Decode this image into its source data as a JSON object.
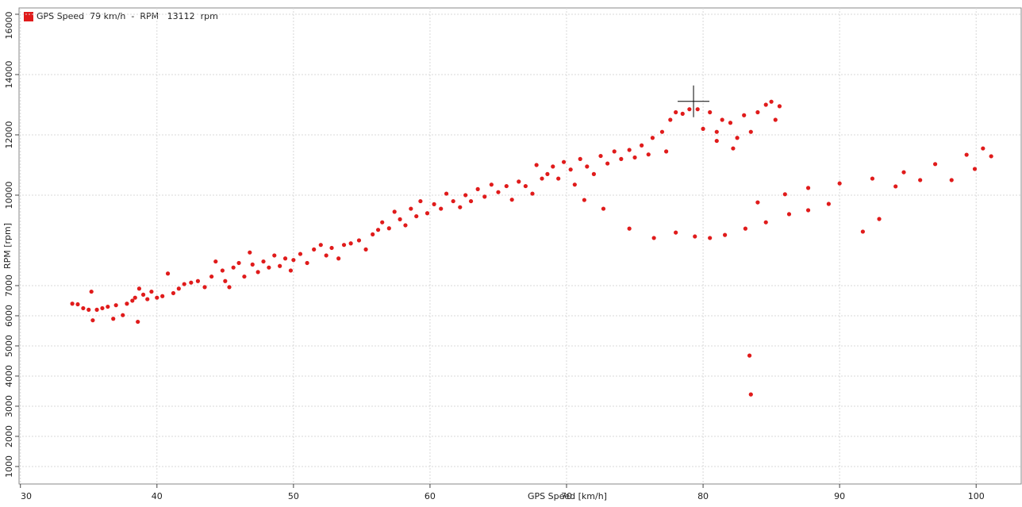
{
  "chart_data": {
    "type": "scatter",
    "legend_text": "GPS Speed  79 km/h  -  RPM   13112  rpm",
    "x_label": "GPS Speed [km/h]",
    "y_label": "RPM [rpm]",
    "xlim": [
      29.9,
      103.3
    ],
    "xticks": [
      30,
      40,
      50,
      60,
      70,
      80,
      90,
      100
    ],
    "ylim": [
      420,
      16210
    ],
    "yticks": [
      1000,
      2000,
      3000,
      4000,
      5000,
      6000,
      7000,
      10000,
      12000,
      14000,
      16000
    ],
    "grid": true,
    "cursor": {
      "x": 79.3,
      "y": 13112
    },
    "series": [
      {
        "name": "GPS Speed",
        "color": "#e01b1b",
        "x": [
          33.8,
          34.2,
          34.6,
          35.0,
          35.2,
          35.3,
          35.6,
          36.0,
          36.4,
          36.8,
          37.0,
          37.5,
          37.8,
          38.2,
          38.4,
          38.6,
          38.7,
          39.0,
          39.3,
          39.6,
          40.0,
          40.4,
          40.8,
          41.2,
          41.6,
          42.0,
          42.5,
          43.0,
          43.5,
          44.0,
          44.3,
          44.8,
          45.0,
          45.3,
          45.6,
          46.0,
          46.4,
          46.8,
          47.0,
          47.4,
          47.8,
          48.2,
          48.6,
          49.0,
          49.4,
          49.8,
          50.0,
          50.5,
          51.0,
          51.5,
          52.0,
          52.4,
          52.8,
          53.3,
          53.7,
          54.2,
          54.8,
          55.3,
          55.8,
          56.2,
          56.5,
          57.0,
          57.4,
          57.8,
          58.2,
          58.6,
          59.0,
          59.3,
          59.8,
          60.3,
          60.8,
          61.2,
          61.7,
          62.2,
          62.6,
          63.0,
          63.5,
          64.0,
          64.5,
          65.0,
          65.6,
          66.0,
          66.5,
          67.0,
          67.5,
          67.8,
          68.2,
          68.6,
          69.0,
          69.4,
          69.8,
          70.3,
          70.6,
          71.0,
          71.5,
          72.0,
          72.5,
          73.0,
          73.5,
          74.0,
          74.6,
          75.0,
          75.5,
          76.0,
          76.3,
          77.0,
          77.3,
          77.6,
          78.0,
          78.5,
          79.0,
          79.6,
          80.0,
          80.5,
          81.0,
          81.4,
          82.0,
          82.5,
          83.0,
          83.5,
          84.0,
          84.6,
          85.0,
          85.3,
          85.6,
          81.0,
          82.2,
          71.3,
          72.7,
          74.6,
          76.4,
          78.0,
          79.4,
          80.5,
          81.6,
          83.1,
          84.6,
          83.4,
          83.5,
          84.0,
          86.0,
          87.7,
          90.0,
          92.4,
          94.7,
          97.0,
          99.3,
          100.5,
          86.3,
          87.7,
          89.2,
          91.7,
          92.9,
          94.1,
          95.9,
          98.2,
          99.9,
          101.1
        ],
        "values": [
          6400,
          6380,
          6250,
          6200,
          6800,
          5850,
          6200,
          6250,
          6300,
          5900,
          6350,
          6020,
          6400,
          6500,
          6600,
          5800,
          6900,
          6700,
          6550,
          6800,
          6600,
          6650,
          7400,
          6750,
          6900,
          7050,
          7100,
          7150,
          6950,
          7300,
          7800,
          7500,
          7150,
          6950,
          7600,
          7750,
          7300,
          8100,
          7700,
          7450,
          7800,
          7600,
          8000,
          7650,
          7900,
          7500,
          7850,
          8050,
          7750,
          8200,
          8350,
          8000,
          8250,
          7900,
          8350,
          8400,
          8500,
          8200,
          8700,
          8850,
          9100,
          8900,
          9450,
          9200,
          9000,
          9550,
          9300,
          9800,
          9400,
          9700,
          9550,
          10050,
          9800,
          9600,
          10000,
          9800,
          10200,
          9950,
          10350,
          10100,
          10300,
          9850,
          10450,
          10300,
          10050,
          11000,
          10550,
          10700,
          10950,
          10550,
          11100,
          10850,
          10350,
          11200,
          10950,
          10700,
          11300,
          11050,
          11450,
          11200,
          11500,
          11250,
          11650,
          11350,
          11900,
          12100,
          11450,
          12500,
          12750,
          12700,
          12850,
          12850,
          12200,
          12750,
          12100,
          12500,
          12400,
          11900,
          12650,
          12100,
          12750,
          13000,
          13100,
          12500,
          12950,
          11800,
          11550,
          9840,
          9550,
          8890,
          8580,
          8760,
          8630,
          8580,
          8680,
          8890,
          9100,
          4680,
          3390,
          9760,
          10030,
          10240,
          10390,
          10550,
          10760,
          11030,
          11340,
          11550,
          9370,
          9500,
          9710,
          8790,
          9210,
          10290,
          10500,
          10500,
          10870,
          11290
        ]
      }
    ]
  }
}
